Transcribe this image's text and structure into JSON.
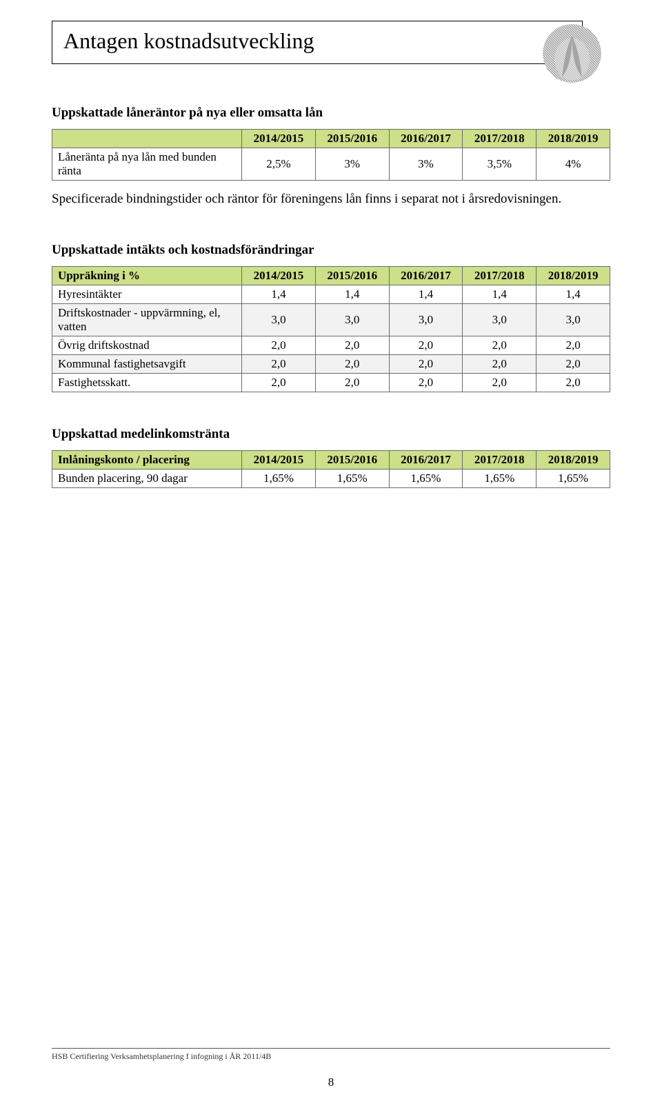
{
  "page_title": "Antagen kostnadsutveckling",
  "section1_title": "Uppskattade låneräntor på nya eller omsatta lån",
  "table1": {
    "headers": [
      "2014/2015",
      "2015/2016",
      "2016/2017",
      "2017/2018",
      "2018/2019"
    ],
    "row_label": "Låneränta på nya lån med bunden ränta",
    "row_values": [
      "2,5%",
      "3%",
      "3%",
      "3,5%",
      "4%"
    ]
  },
  "note_text": "Specificerade bindningstider och räntor för föreningens lån finns i separat not i årsredovisningen.",
  "section2_title": "Uppskattade intäkts och kostnadsförändringar",
  "table2": {
    "header_label": "Uppräkning i %",
    "headers": [
      "2014/2015",
      "2015/2016",
      "2016/2017",
      "2017/2018",
      "2018/2019"
    ],
    "rows": [
      {
        "label": "Hyresintäkter",
        "values": [
          "1,4",
          "1,4",
          "1,4",
          "1,4",
          "1,4"
        ],
        "alt": false
      },
      {
        "label": "Driftskostnader - uppvärmning, el, vatten",
        "values": [
          "3,0",
          "3,0",
          "3,0",
          "3,0",
          "3,0"
        ],
        "alt": true
      },
      {
        "label": "Övrig driftskostnad",
        "values": [
          "2,0",
          "2,0",
          "2,0",
          "2,0",
          "2,0"
        ],
        "alt": false
      },
      {
        "label": "Kommunal fastighetsavgift",
        "values": [
          "2,0",
          "2,0",
          "2,0",
          "2,0",
          "2,0"
        ],
        "alt": true
      },
      {
        "label": "Fastighetsskatt.",
        "values": [
          "2,0",
          "2,0",
          "2,0",
          "2,0",
          "2,0"
        ],
        "alt": false
      }
    ]
  },
  "section3_title": "Uppskattad medelinkomstränta",
  "table3": {
    "header_label": "Inlåningskonto / placering",
    "headers": [
      "2014/2015",
      "2015/2016",
      "2016/2017",
      "2017/2018",
      "2018/2019"
    ],
    "row_label": "Bunden placering, 90 dagar",
    "row_values": [
      "1,65%",
      "1,65%",
      "1,65%",
      "1,65%",
      "1,65%"
    ]
  },
  "footer_text": "HSB Certifiering Verksamhetsplanering f infogning i ÅR 2011/4B",
  "page_number": "8",
  "colors": {
    "header_bg": "#ccdf89",
    "alt_row_bg": "#f2f2f2",
    "border": "#6a6a6a"
  }
}
